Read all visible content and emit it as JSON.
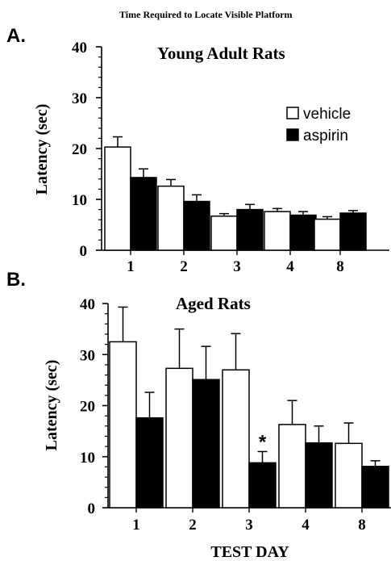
{
  "figure_title": "Time Required to Locate Visible Platform",
  "shared_xlabel": "TEST DAY",
  "legend": [
    {
      "label": "vehicle",
      "fill": "#ffffff"
    },
    {
      "label": "aspirin",
      "fill": "#000000"
    }
  ],
  "colors": {
    "vehicle": "#ffffff",
    "aspirin": "#000000",
    "ink": "#000000"
  },
  "chart_data": [
    {
      "panel_label": "A.",
      "type": "bar",
      "title": "Young Adult Rats",
      "ylabel": "Latency (sec)",
      "xlabel": "",
      "categories": [
        "1",
        "2",
        "3",
        "4",
        "8"
      ],
      "ylim": [
        0,
        40
      ],
      "yticks": [
        "0",
        "10",
        "20",
        "30",
        "40"
      ],
      "legend_position": "top-right",
      "series": [
        {
          "name": "vehicle",
          "values": [
            20.3,
            12.6,
            6.7,
            7.6,
            6.1
          ],
          "errors": [
            2.0,
            1.3,
            0.5,
            0.6,
            0.5
          ]
        },
        {
          "name": "aspirin",
          "values": [
            14.3,
            9.6,
            8.0,
            6.9,
            7.3
          ],
          "errors": [
            1.7,
            1.3,
            1.0,
            0.7,
            0.5
          ]
        }
      ],
      "annotations": []
    },
    {
      "panel_label": "B.",
      "type": "bar",
      "title": "Aged Rats",
      "ylabel": "Latency (sec)",
      "xlabel": "TEST DAY",
      "categories": [
        "1",
        "2",
        "3",
        "4",
        "8"
      ],
      "ylim": [
        0,
        40
      ],
      "yticks": [
        "0",
        "10",
        "20",
        "30",
        "40"
      ],
      "series": [
        {
          "name": "vehicle",
          "values": [
            32.5,
            27.3,
            27.0,
            16.3,
            12.6
          ],
          "errors": [
            6.8,
            7.7,
            7.1,
            4.7,
            4.0
          ]
        },
        {
          "name": "aspirin",
          "values": [
            17.6,
            25.1,
            8.8,
            12.7,
            8.1
          ],
          "errors": [
            5.0,
            6.5,
            2.2,
            3.3,
            1.1
          ]
        }
      ],
      "annotations": [
        {
          "text": "*",
          "category": "3",
          "series": "aspirin"
        }
      ]
    }
  ]
}
